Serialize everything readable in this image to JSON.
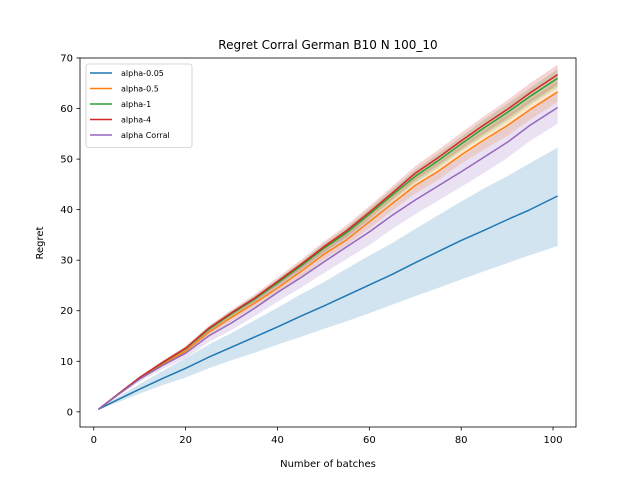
{
  "chart_data": {
    "type": "line",
    "title": "Regret Corral German B10 N 100_10",
    "xlabel": "Number of batches",
    "ylabel": "Regret",
    "xlim": [
      -3,
      105
    ],
    "ylim": [
      -3,
      70
    ],
    "xticks": [
      0,
      20,
      40,
      60,
      80,
      100
    ],
    "yticks": [
      0,
      10,
      20,
      30,
      40,
      50,
      60,
      70
    ],
    "grid": false,
    "legend_position": "top-left",
    "x": [
      1,
      5,
      10,
      15,
      20,
      25,
      30,
      35,
      40,
      45,
      50,
      55,
      60,
      65,
      70,
      75,
      80,
      85,
      90,
      95,
      101
    ],
    "series": [
      {
        "name": "alpha-0.05",
        "color": "#1f77b4",
        "values": [
          0.5,
          2.3,
          4.5,
          6.6,
          8.6,
          10.8,
          12.8,
          14.8,
          16.8,
          18.9,
          20.9,
          23.0,
          25.1,
          27.2,
          29.5,
          31.7,
          33.9,
          35.9,
          38.0,
          40.0,
          42.7
        ],
        "lower": [
          0.5,
          1.8,
          3.6,
          5.3,
          6.8,
          8.6,
          10.2,
          11.7,
          13.3,
          14.8,
          16.4,
          17.9,
          19.5,
          21.2,
          22.9,
          24.5,
          26.2,
          27.8,
          29.4,
          31.0,
          32.8
        ],
        "upper": [
          0.5,
          2.8,
          5.5,
          8.1,
          10.6,
          13.3,
          15.6,
          18.1,
          20.6,
          23.2,
          25.6,
          28.3,
          30.9,
          33.4,
          36.2,
          38.9,
          41.6,
          44.2,
          46.6,
          49.2,
          52.3
        ]
      },
      {
        "name": "alpha-0.5",
        "color": "#ff7f0e",
        "values": [
          0.5,
          3.2,
          6.6,
          9.4,
          12.0,
          15.7,
          18.7,
          21.5,
          24.5,
          27.7,
          31.1,
          34.0,
          37.6,
          41.2,
          44.8,
          47.6,
          50.8,
          53.8,
          56.6,
          59.8,
          63.3
        ],
        "lower": [
          0.5,
          3.1,
          6.3,
          9.0,
          11.6,
          15.1,
          18.0,
          20.8,
          23.6,
          26.7,
          30.0,
          32.9,
          36.3,
          39.8,
          43.2,
          45.9,
          49.1,
          51.9,
          54.6,
          57.8,
          61.3
        ],
        "upper": [
          0.5,
          3.3,
          6.9,
          9.8,
          12.4,
          16.3,
          19.4,
          22.2,
          25.4,
          28.7,
          32.2,
          35.1,
          38.9,
          42.6,
          46.4,
          49.3,
          52.5,
          55.7,
          58.6,
          61.8,
          65.3
        ]
      },
      {
        "name": "alpha-1",
        "color": "#2ca02c",
        "values": [
          0.5,
          3.3,
          6.8,
          9.7,
          12.5,
          16.3,
          19.4,
          22.3,
          25.5,
          28.8,
          32.3,
          35.4,
          39.1,
          42.9,
          46.6,
          49.7,
          53.0,
          56.2,
          59.2,
          62.4,
          66.0
        ],
        "lower": [
          0.5,
          3.2,
          6.6,
          9.4,
          12.1,
          15.8,
          18.8,
          21.7,
          24.8,
          28.0,
          31.4,
          34.4,
          38.0,
          41.7,
          45.3,
          48.3,
          51.6,
          54.6,
          57.5,
          60.7,
          64.2
        ],
        "upper": [
          0.5,
          3.4,
          7.0,
          10.0,
          12.9,
          16.8,
          20.0,
          22.9,
          26.2,
          29.6,
          33.2,
          36.4,
          40.2,
          44.1,
          47.9,
          51.1,
          54.4,
          57.8,
          60.9,
          64.1,
          67.8
        ]
      },
      {
        "name": "alpha-4",
        "color": "#d62728",
        "values": [
          0.5,
          3.3,
          6.8,
          9.8,
          12.6,
          16.5,
          19.6,
          22.5,
          25.8,
          29.1,
          32.6,
          35.8,
          39.5,
          43.3,
          47.2,
          50.3,
          53.6,
          56.8,
          59.8,
          63.1,
          66.7
        ],
        "lower": [
          0.5,
          3.2,
          6.6,
          9.5,
          12.2,
          16.0,
          19.0,
          21.8,
          25.0,
          28.2,
          31.6,
          34.7,
          38.3,
          42.0,
          45.8,
          48.8,
          52.0,
          55.1,
          58.0,
          61.2,
          64.7
        ],
        "upper": [
          0.5,
          3.4,
          7.0,
          10.1,
          13.0,
          17.0,
          20.2,
          23.2,
          26.6,
          30.0,
          33.6,
          36.9,
          40.7,
          44.6,
          48.6,
          51.8,
          55.2,
          58.5,
          61.6,
          65.0,
          68.7
        ]
      },
      {
        "name": "alpha Corral",
        "color": "#9467bd",
        "values": [
          0.5,
          3.2,
          6.5,
          9.2,
          11.6,
          15.0,
          17.6,
          20.5,
          23.6,
          26.5,
          29.6,
          32.6,
          35.6,
          38.9,
          41.9,
          44.7,
          47.5,
          50.4,
          53.3,
          56.7,
          60.2
        ],
        "lower": [
          0.5,
          3.0,
          6.0,
          8.5,
          10.6,
          13.8,
          16.2,
          18.9,
          21.8,
          24.5,
          27.4,
          30.2,
          33.0,
          36.2,
          39.1,
          41.8,
          44.5,
          47.3,
          50.2,
          53.6,
          57.0
        ],
        "upper": [
          0.5,
          3.4,
          7.0,
          9.9,
          12.6,
          16.2,
          19.0,
          22.1,
          25.4,
          28.5,
          31.8,
          35.0,
          38.2,
          41.6,
          44.7,
          47.6,
          50.5,
          53.5,
          56.4,
          59.8,
          63.4
        ]
      }
    ]
  }
}
